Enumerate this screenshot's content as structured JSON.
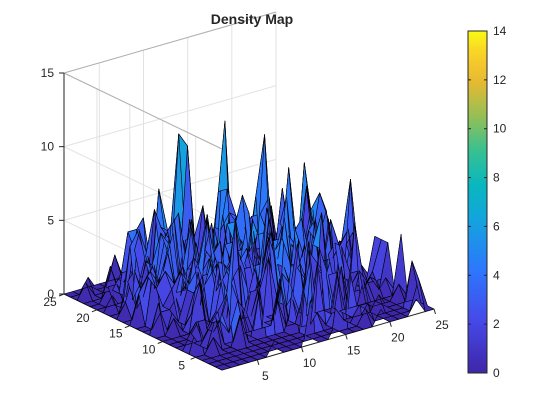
{
  "chart_data": {
    "type": "surface",
    "title": "Density Map",
    "xlabel": "",
    "ylabel": "",
    "zlabel": "",
    "colormap": "parula",
    "grid": true,
    "view": "3d-oblique",
    "x_range": [
      1,
      25
    ],
    "y_range": [
      1,
      25
    ],
    "zlim": [
      0,
      15
    ],
    "x_ticks": [
      5,
      10,
      15,
      20,
      25
    ],
    "y_ticks": [
      5,
      10,
      15,
      20,
      25
    ],
    "z_ticks": [
      0,
      5,
      10,
      15
    ],
    "x_tick_labels": [
      "5",
      "10",
      "15",
      "20",
      "25"
    ],
    "y_tick_labels": [
      "5",
      "10",
      "15",
      "20",
      "25"
    ],
    "z_tick_labels": [
      "0",
      "5",
      "10",
      "15"
    ],
    "colorbar": {
      "range": [
        0,
        14
      ],
      "ticks": [
        0,
        2,
        4,
        6,
        8,
        10,
        12,
        14
      ],
      "tick_labels": [
        "0",
        "2",
        "4",
        "6",
        "8",
        "10",
        "12",
        "14"
      ]
    },
    "z": [
      [
        0,
        0,
        0,
        0,
        0,
        0,
        1,
        0,
        0,
        0,
        3,
        0,
        0,
        1,
        0,
        0,
        0,
        0,
        1,
        0,
        0,
        0,
        1,
        0,
        0
      ],
      [
        0,
        0,
        0,
        0,
        0,
        0,
        0,
        0,
        0,
        0,
        0,
        0,
        0,
        0,
        0,
        0,
        0,
        1,
        0,
        0,
        0,
        0,
        0,
        2,
        0
      ],
      [
        0,
        0,
        0,
        0,
        0,
        0,
        0,
        0,
        0,
        0,
        0,
        0,
        0,
        0,
        0,
        4,
        0,
        1,
        1,
        0,
        0,
        0,
        0,
        3,
        0
      ],
      [
        0,
        0,
        0,
        0,
        0,
        0,
        0,
        0,
        0,
        0,
        0,
        0,
        6,
        1,
        0,
        1,
        0,
        0,
        0,
        0,
        1,
        0,
        0,
        0,
        0
      ],
      [
        0,
        0,
        1,
        0,
        0,
        2,
        0,
        0,
        0,
        0,
        0,
        2,
        0,
        0,
        5,
        3,
        3,
        0,
        6,
        2,
        0,
        0,
        0,
        1,
        0
      ],
      [
        0,
        2,
        0,
        2,
        0,
        0,
        2,
        0,
        3,
        5,
        2,
        0,
        0,
        2,
        5,
        7,
        0,
        0,
        0,
        0,
        0,
        0,
        0,
        0,
        4
      ],
      [
        0,
        1,
        0,
        1,
        2,
        3,
        8,
        0,
        0,
        0,
        0,
        3,
        0,
        5,
        0,
        0,
        0,
        0,
        4,
        2,
        2,
        1,
        1,
        1,
        0
      ],
      [
        0,
        0,
        0,
        0,
        1,
        1,
        0,
        2,
        1,
        4,
        0,
        0,
        3,
        2,
        0,
        4,
        3,
        2,
        4,
        0,
        1,
        2,
        1,
        0,
        3
      ],
      [
        0,
        0,
        0,
        1,
        1,
        0,
        1,
        3,
        4,
        2,
        2,
        0,
        0,
        3,
        1,
        6,
        0,
        2,
        3,
        0,
        1,
        0,
        0,
        1,
        3
      ],
      [
        0,
        0,
        0,
        0,
        4,
        0,
        1,
        4,
        3,
        0,
        0,
        2,
        5,
        3,
        0,
        5,
        3,
        6,
        0,
        5,
        3,
        4,
        0,
        0,
        3
      ],
      [
        0,
        0,
        1,
        0,
        1,
        3,
        0,
        4,
        0,
        6,
        3,
        3,
        3,
        5,
        0,
        9,
        2,
        1,
        5,
        2,
        2,
        3,
        7,
        1,
        0
      ],
      [
        0,
        2,
        0,
        2,
        0,
        2,
        3,
        3,
        5,
        1,
        4,
        4,
        1,
        2,
        4,
        4,
        2,
        2,
        4,
        3,
        5,
        0,
        0,
        3,
        0
      ],
      [
        0,
        0,
        1,
        1,
        0,
        2,
        5,
        2,
        4,
        2,
        3,
        3,
        6,
        1,
        6,
        3,
        5,
        0,
        2,
        5,
        6,
        4,
        0,
        2,
        0
      ],
      [
        0,
        0,
        4,
        1,
        2,
        3,
        2,
        3,
        6,
        1,
        4,
        4,
        7,
        1,
        0,
        5,
        2,
        6,
        0,
        8,
        3,
        0,
        1,
        2,
        1
      ],
      [
        0,
        2,
        3,
        2,
        3,
        2,
        3,
        6,
        0,
        3,
        1,
        5,
        5,
        2,
        4,
        0,
        1,
        4,
        3,
        2,
        6,
        0,
        0,
        0,
        0
      ],
      [
        0,
        0,
        2,
        3,
        2,
        4,
        1,
        1,
        3,
        2,
        5,
        1,
        2,
        3,
        2,
        6,
        10,
        1,
        6,
        2,
        1,
        0,
        0,
        1,
        0
      ],
      [
        0,
        1,
        3,
        1,
        3,
        5,
        4,
        6,
        2,
        2,
        3,
        2,
        5,
        1,
        3,
        2,
        3,
        3,
        2,
        2,
        3,
        2,
        2,
        0,
        0
      ],
      [
        0,
        0,
        2,
        0,
        3,
        1,
        2,
        5,
        0,
        5,
        2,
        5,
        1,
        11,
        0,
        1,
        4,
        4,
        5,
        0,
        0,
        0,
        1,
        0,
        0
      ],
      [
        0,
        1,
        0,
        4,
        5,
        3,
        1,
        4,
        5,
        0,
        1,
        1,
        1,
        6,
        6,
        4,
        3,
        1,
        0,
        4,
        0,
        1,
        1,
        0,
        0
      ],
      [
        0,
        0,
        0,
        0,
        0,
        1,
        0,
        7,
        4,
        0,
        3,
        3,
        5,
        1,
        3,
        4,
        3,
        2,
        1,
        1,
        0,
        1,
        0,
        0,
        0
      ],
      [
        0,
        0,
        1,
        1,
        0,
        3,
        5,
        1,
        4,
        3,
        10,
        9,
        1,
        0,
        3,
        0,
        0,
        2,
        0,
        0,
        0,
        0,
        0,
        1,
        0
      ],
      [
        0,
        0,
        0,
        2,
        0,
        4,
        4,
        2,
        5,
        0,
        2,
        2,
        0,
        0,
        0,
        1,
        0,
        1,
        0,
        2,
        0,
        0,
        0,
        0,
        0
      ],
      [
        0,
        1,
        0,
        0,
        0,
        1,
        1,
        0,
        0,
        0,
        0,
        0,
        2,
        0,
        0,
        1,
        1,
        0,
        0,
        0,
        0,
        0,
        0,
        0,
        0
      ],
      [
        0,
        0,
        1,
        0,
        0,
        2,
        0,
        0,
        0,
        0,
        0,
        0,
        0,
        0,
        0,
        0,
        0,
        0,
        0,
        0,
        1,
        0,
        0,
        0,
        0
      ],
      [
        0,
        0,
        0,
        0,
        0,
        0,
        0,
        0,
        0,
        0,
        0,
        0,
        0,
        0,
        0,
        0,
        0,
        0,
        0,
        0,
        0,
        0,
        0,
        0,
        0
      ]
    ]
  }
}
